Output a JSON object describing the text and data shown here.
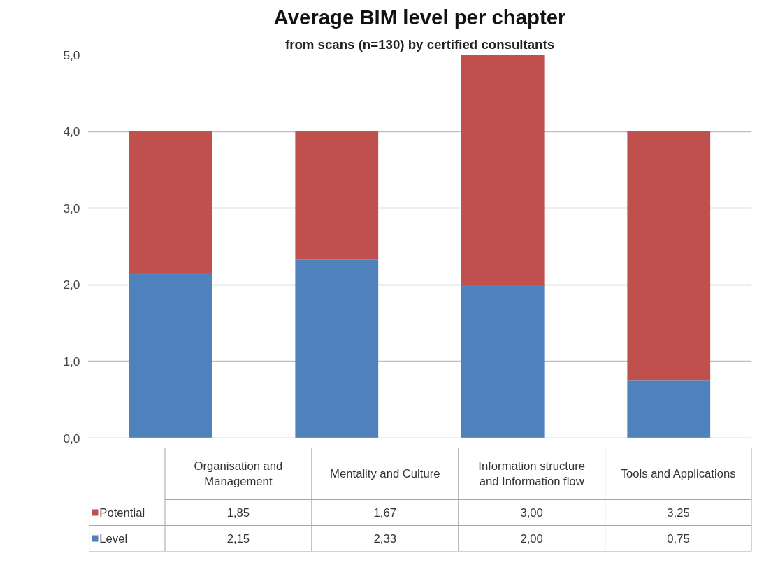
{
  "chart_data": {
    "type": "bar",
    "stacked": true,
    "title": "Average BIM level per chapter",
    "subtitle": "from scans (n=130) by certified consultants",
    "categories": [
      "Organisation and Management",
      "Mentality and Culture",
      "Information structure and Information flow",
      "Tools and Applications"
    ],
    "series": [
      {
        "name": "Level",
        "color": "#4f81bd",
        "values": [
          2.15,
          2.33,
          2.0,
          0.75
        ],
        "value_labels": [
          "2,15",
          "2,33",
          "2,00",
          "0,75"
        ]
      },
      {
        "name": "Potential",
        "color": "#c0504d",
        "values": [
          1.85,
          1.67,
          3.0,
          3.25
        ],
        "value_labels": [
          "1,85",
          "1,67",
          "3,00",
          "3,25"
        ]
      }
    ],
    "ylim": [
      0,
      5
    ],
    "yticks": [
      {
        "value": 0,
        "label": "0,0"
      },
      {
        "value": 1,
        "label": "1,0"
      },
      {
        "value": 2,
        "label": "2,0"
      },
      {
        "value": 3,
        "label": "3,0"
      },
      {
        "value": 4,
        "label": "4,0"
      },
      {
        "value": 5,
        "label": "5,0"
      }
    ],
    "grid": "y",
    "legend": "bottom"
  }
}
